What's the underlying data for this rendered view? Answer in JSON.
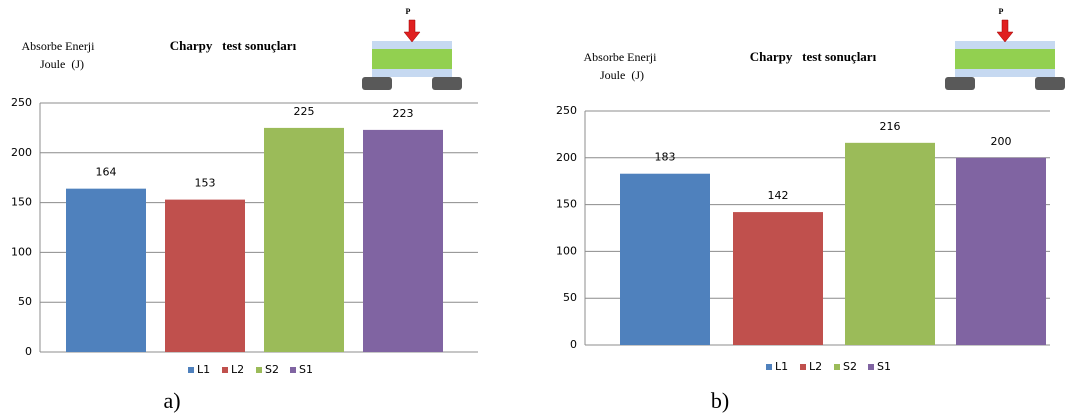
{
  "chart_data": [
    {
      "type": "bar",
      "title": "Charpy   test sonuçları",
      "y_label_lines": [
        "Absorbe Enerji",
        "Joule  (J)"
      ],
      "diagram_label": "P",
      "panel_label": "a)",
      "series": [
        {
          "name": "L1",
          "color": "#4f81bd",
          "values": [
            164
          ]
        },
        {
          "name": "L2",
          "color": "#c0504d",
          "values": [
            153
          ]
        },
        {
          "name": "S2",
          "color": "#9bbb59",
          "values": [
            225
          ]
        },
        {
          "name": "S1",
          "color": "#8064a2",
          "values": [
            223
          ]
        }
      ],
      "ylim": [
        0,
        250
      ],
      "yticks": [
        0,
        50,
        100,
        150,
        200,
        250
      ],
      "grid": true
    },
    {
      "type": "bar",
      "title": "Charpy   test sonuçları",
      "y_label_lines": [
        "Absorbe Enerji",
        "Joule  (J)"
      ],
      "diagram_label": "P",
      "panel_label": "b)",
      "series": [
        {
          "name": "L1",
          "color": "#4f81bd",
          "values": [
            183
          ]
        },
        {
          "name": "L2",
          "color": "#c0504d",
          "values": [
            142
          ]
        },
        {
          "name": "S2",
          "color": "#9bbb59",
          "values": [
            216
          ]
        },
        {
          "name": "S1",
          "color": "#8064a2",
          "values": [
            200
          ]
        }
      ],
      "ylim": [
        0,
        250
      ],
      "yticks": [
        0,
        50,
        100,
        150,
        200,
        250
      ],
      "grid": true
    }
  ]
}
